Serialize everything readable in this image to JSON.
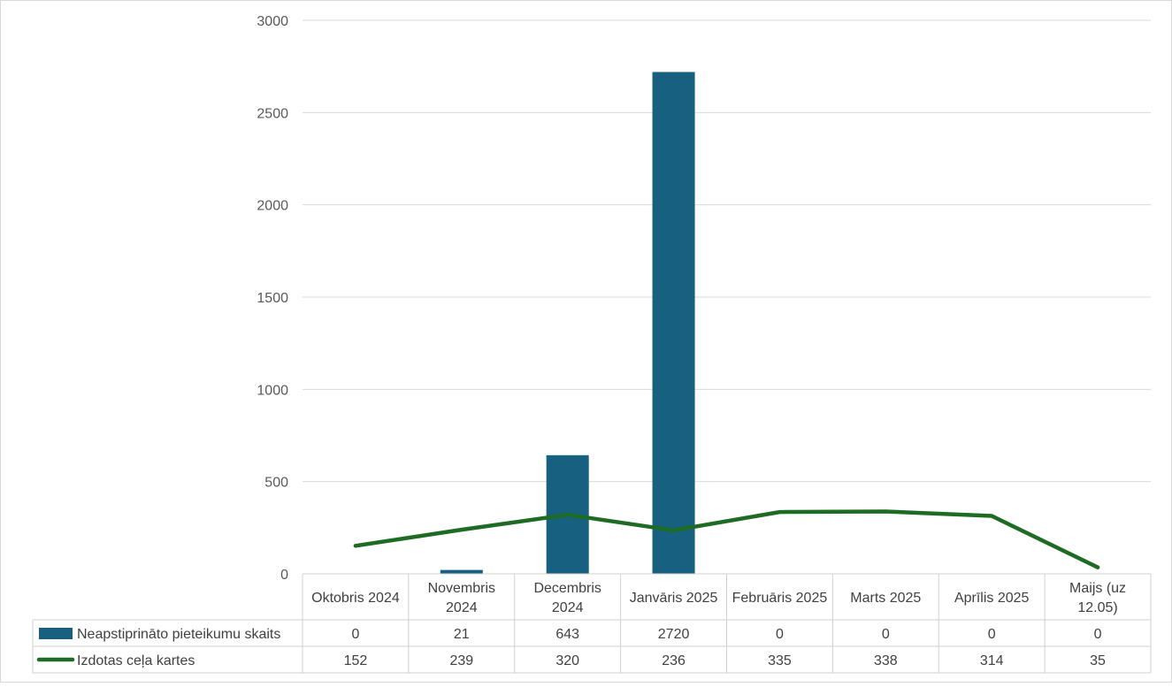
{
  "chart_data": {
    "type": "bar",
    "title": "",
    "xlabel": "",
    "ylabel": "",
    "ylim": [
      0,
      3000
    ],
    "yticks": [
      0,
      500,
      1000,
      1500,
      2000,
      2500,
      3000
    ],
    "grid": true,
    "legend_placement": "data-table",
    "categories": [
      [
        "Oktobris 2024"
      ],
      [
        "Novembris",
        "2024"
      ],
      [
        "Decembris",
        "2024"
      ],
      [
        "Janvāris 2025"
      ],
      [
        "Februāris 2025"
      ],
      [
        "Marts 2025"
      ],
      [
        "Aprīlis 2025"
      ],
      [
        "Maijs (uz",
        "12.05)"
      ]
    ],
    "series": [
      {
        "name": "Neapstiprināto pieteikumu skaits",
        "type": "bar",
        "color": "#17607f",
        "values": [
          0,
          21,
          643,
          2720,
          0,
          0,
          0,
          0
        ]
      },
      {
        "name": "Izdotas ceļa kartes",
        "type": "line",
        "color": "#1e6b23",
        "values": [
          152,
          239,
          320,
          236,
          335,
          338,
          314,
          35
        ]
      }
    ]
  }
}
